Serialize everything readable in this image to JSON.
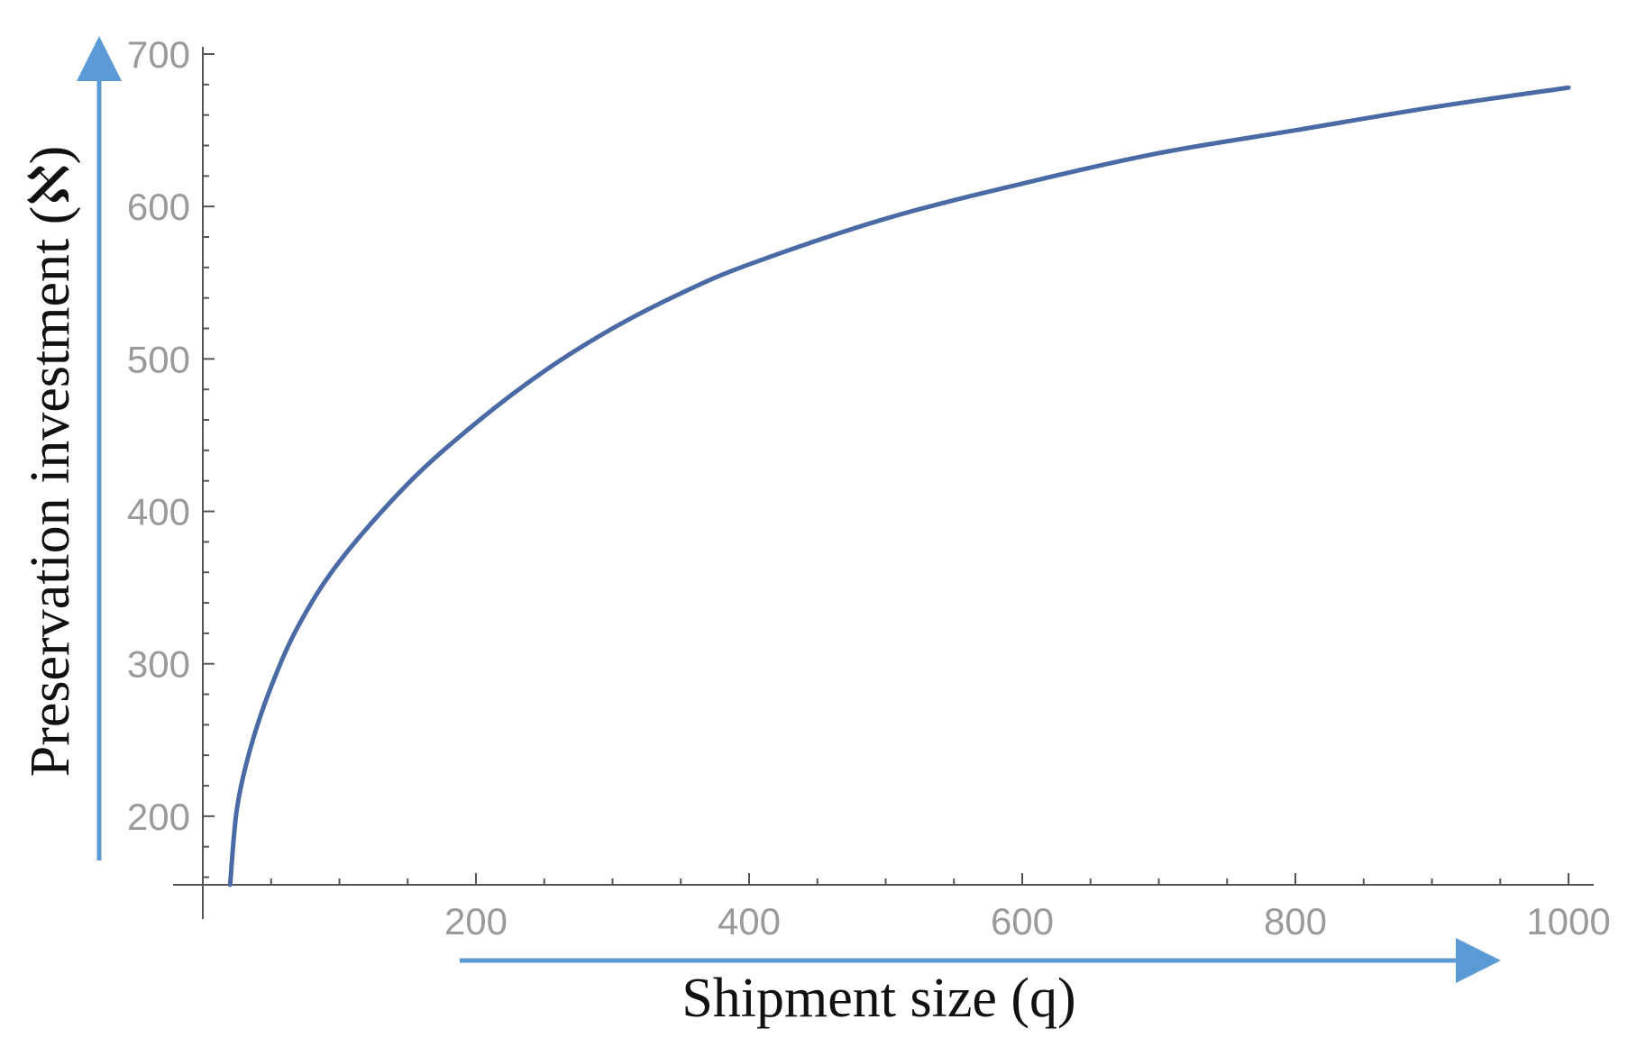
{
  "chart_data": {
    "type": "line",
    "title": "",
    "xlabel": "Shipment size (q)",
    "ylabel": "Preservation investment (ℵ)",
    "xlim": [
      0,
      1000
    ],
    "ylim": [
      155,
      700
    ],
    "xticks": [
      200,
      400,
      600,
      800,
      1000
    ],
    "yticks": [
      200,
      300,
      400,
      500,
      600,
      700
    ],
    "xtick_labels": [
      "200",
      "400",
      "600",
      "800",
      "1000"
    ],
    "ytick_labels": [
      "200",
      "300",
      "400",
      "500",
      "600",
      "700"
    ],
    "grid": false,
    "series": [
      {
        "x": [
          20,
          25,
          35,
          50,
          70,
          100,
          150,
          200,
          250,
          300,
          350,
          400,
          500,
          600,
          700,
          800,
          900,
          1000
        ],
        "values": [
          155,
          205,
          245,
          285,
          325,
          367,
          418,
          458,
          492,
          520,
          543,
          562,
          592,
          615,
          635,
          650,
          665,
          678
        ]
      }
    ],
    "colors": {
      "line": "#4a6aa5",
      "axis": "#555555",
      "arrow": "#5b9bd5",
      "tick_text": "#9a9a9a"
    }
  }
}
